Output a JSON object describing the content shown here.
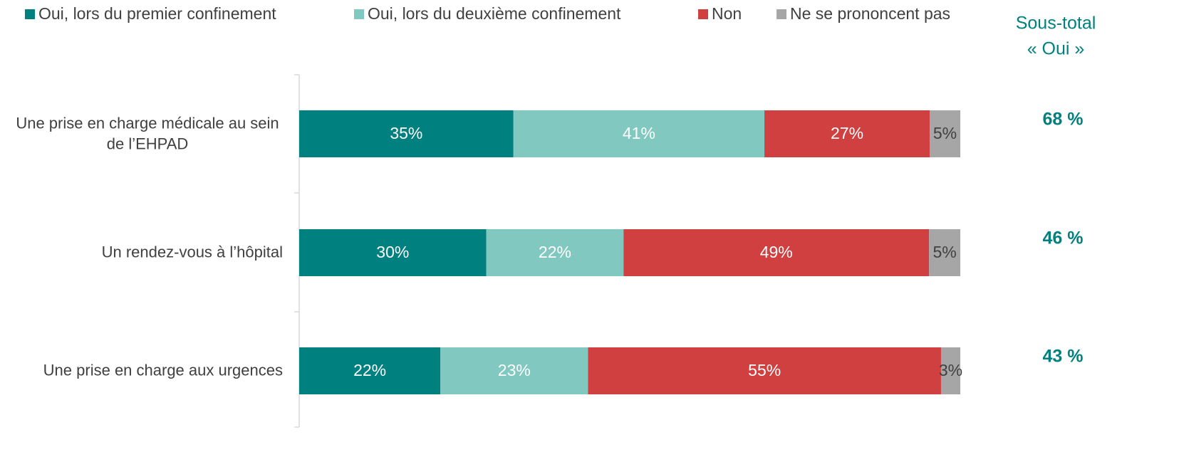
{
  "chart_data": {
    "type": "bar",
    "orientation": "horizontal",
    "stacked": "percent",
    "categories": [
      "Une prise en charge médicale au sein de l’EHPAD",
      "Un rendez-vous à l’hôpital",
      "Une prise en charge aux urgences"
    ],
    "series": [
      {
        "name": "Oui, lors du premier confinement",
        "color": "#00807f",
        "values": [
          35,
          30,
          22
        ],
        "value_labels": [
          "35%",
          "30%",
          "22%"
        ]
      },
      {
        "name": "Oui, lors du deuxième confinement",
        "color": "#80c8c0",
        "values": [
          41,
          22,
          23
        ],
        "value_labels": [
          "41%",
          "22%",
          "23%"
        ]
      },
      {
        "name": "Non",
        "color": "#d04040",
        "values": [
          27,
          49,
          55
        ],
        "value_labels": [
          "27%",
          "49%",
          "55%"
        ]
      },
      {
        "name": "Ne se prononcent pas",
        "color": "#a6a6a6",
        "values": [
          5,
          5,
          3
        ],
        "value_labels": [
          "5%",
          "5%",
          "3%"
        ]
      }
    ],
    "subtotal": {
      "title_lines": [
        "Sous-total",
        "« Oui »"
      ],
      "color": "#00807f",
      "values": [
        68,
        46,
        43
      ],
      "value_labels": [
        "68 %",
        "46 %",
        "43 %"
      ]
    },
    "legend": "top"
  }
}
